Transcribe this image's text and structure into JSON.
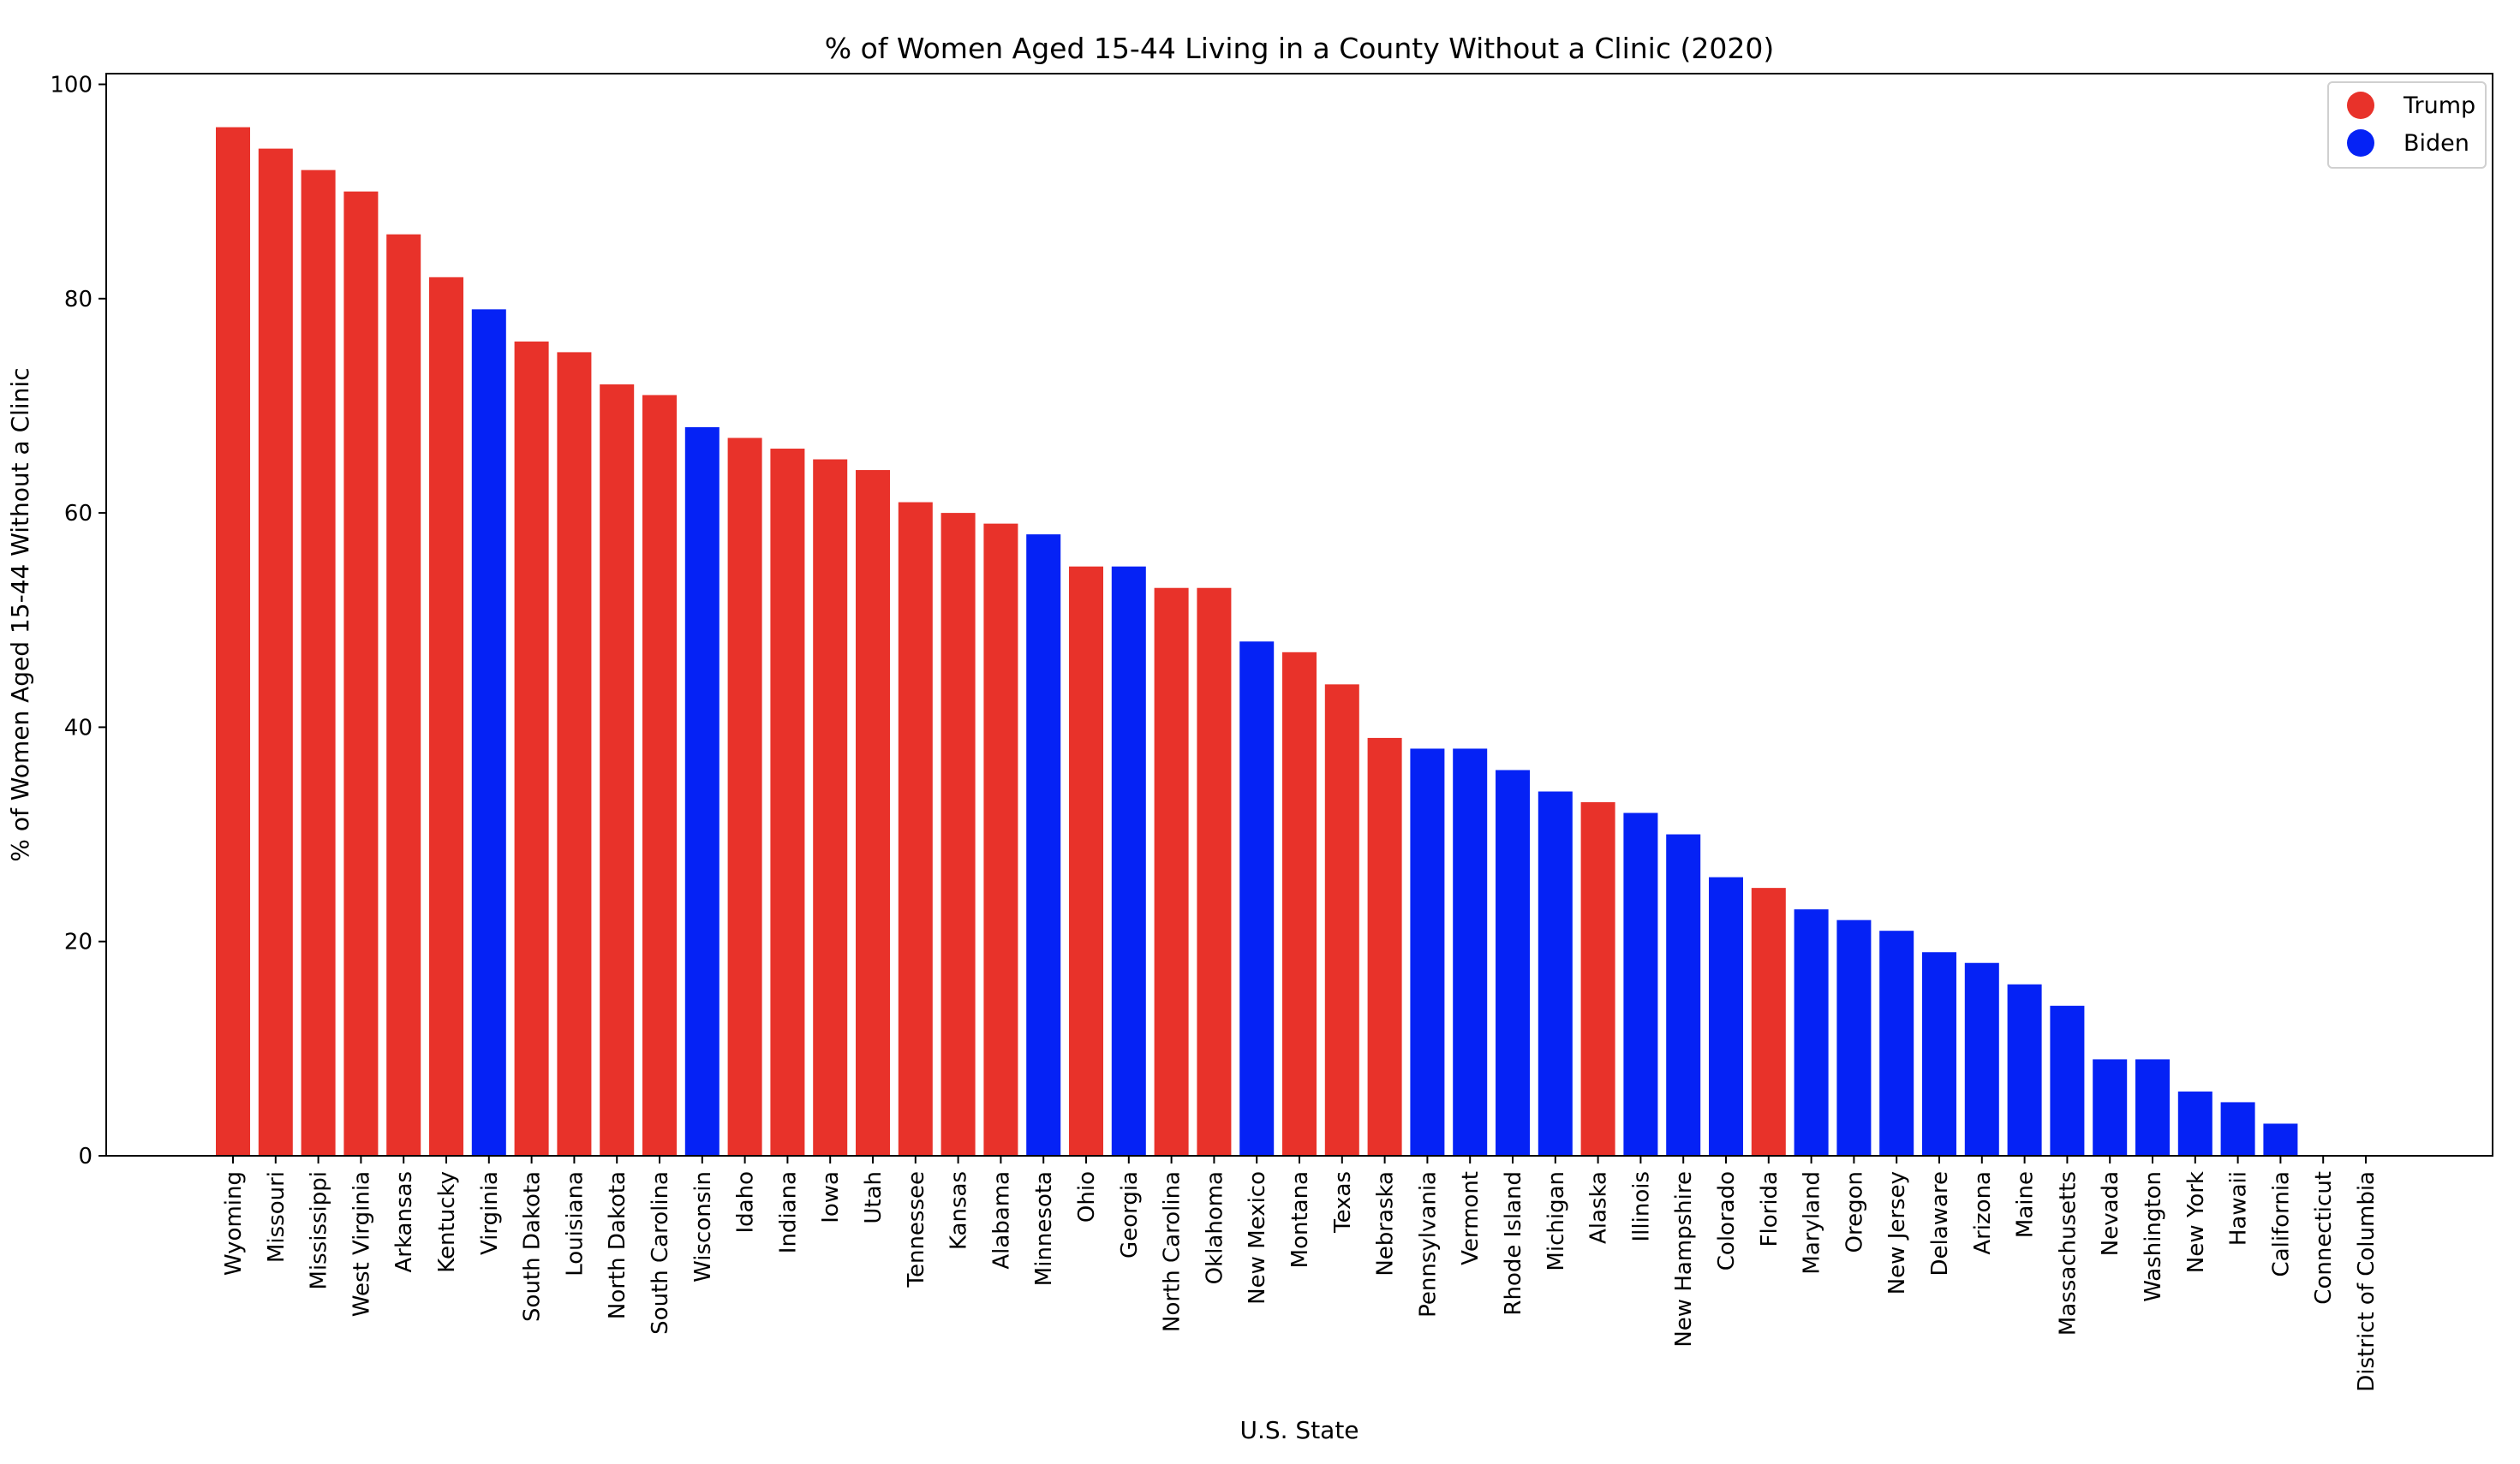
{
  "chart_data": {
    "type": "bar",
    "title": "% of Women Aged 15-44 Living in a County Without a Clinic (2020)",
    "xlabel": "U.S. State",
    "ylabel": "% of Women Aged 15-44 Without a Clinic",
    "ylim": [
      0,
      100
    ],
    "yticks": [
      0,
      20,
      40,
      60,
      80,
      100
    ],
    "grid": false,
    "legend_position": "top-right",
    "legend": [
      {
        "label": "Trump",
        "color": "#e8322a"
      },
      {
        "label": "Biden",
        "color": "#0522f5"
      }
    ],
    "colors": {
      "Trump": "#e8322a",
      "Biden": "#0522f5"
    },
    "categories": [
      "Wyoming",
      "Missouri",
      "Mississippi",
      "West Virginia",
      "Arkansas",
      "Kentucky",
      "Virginia",
      "South Dakota",
      "Louisiana",
      "North Dakota",
      "South Carolina",
      "Wisconsin",
      "Idaho",
      "Indiana",
      "Iowa",
      "Utah",
      "Tennessee",
      "Kansas",
      "Alabama",
      "Minnesota",
      "Ohio",
      "Georgia",
      "North Carolina",
      "Oklahoma",
      "New Mexico",
      "Montana",
      "Texas",
      "Nebraska",
      "Pennsylvania",
      "Vermont",
      "Rhode Island",
      "Michigan",
      "Alaska",
      "Illinois",
      "New Hampshire",
      "Colorado",
      "Florida",
      "Maryland",
      "Oregon",
      "New Jersey",
      "Delaware",
      "Arizona",
      "Maine",
      "Massachusetts",
      "Nevada",
      "Washington",
      "New York",
      "Hawaii",
      "California",
      "Connecticut",
      "District of Columbia"
    ],
    "values": [
      96,
      94,
      92,
      90,
      86,
      82,
      79,
      76,
      75,
      72,
      71,
      68,
      67,
      66,
      65,
      64,
      61,
      60,
      59,
      58,
      55,
      55,
      53,
      53,
      48,
      47,
      44,
      39,
      38,
      38,
      36,
      34,
      33,
      32,
      30,
      26,
      25,
      23,
      22,
      21,
      19,
      18,
      16,
      14,
      9,
      9,
      6,
      5,
      3,
      0,
      0
    ],
    "winner": [
      "Trump",
      "Trump",
      "Trump",
      "Trump",
      "Trump",
      "Trump",
      "Biden",
      "Trump",
      "Trump",
      "Trump",
      "Trump",
      "Biden",
      "Trump",
      "Trump",
      "Trump",
      "Trump",
      "Trump",
      "Trump",
      "Trump",
      "Biden",
      "Trump",
      "Biden",
      "Trump",
      "Trump",
      "Biden",
      "Trump",
      "Trump",
      "Trump",
      "Biden",
      "Biden",
      "Biden",
      "Biden",
      "Trump",
      "Biden",
      "Biden",
      "Biden",
      "Trump",
      "Biden",
      "Biden",
      "Biden",
      "Biden",
      "Biden",
      "Biden",
      "Biden",
      "Biden",
      "Biden",
      "Biden",
      "Biden",
      "Biden",
      "Biden",
      "Biden"
    ]
  }
}
